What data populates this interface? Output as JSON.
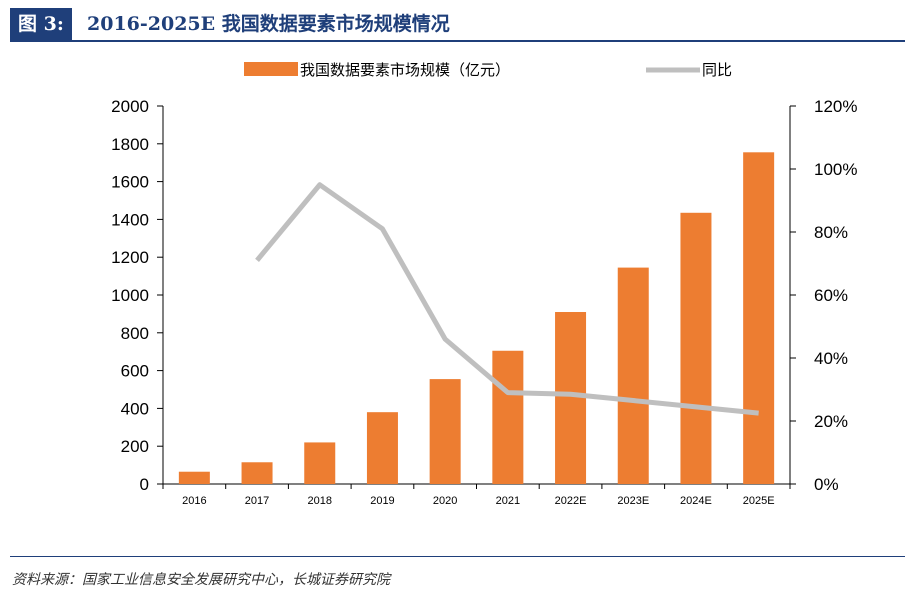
{
  "header": {
    "figure_label": "图 3:",
    "title": "2016-2025E 我国数据要素市场规模情况"
  },
  "footer": {
    "source": "资料来源：国家工业信息安全发展研究中心，长城证券研究院"
  },
  "colors": {
    "bar": "#ed7d31",
    "line": "#bfbfbf",
    "header": "#1f3f7a"
  },
  "chart_data": {
    "type": "bar",
    "categories": [
      "2016",
      "2017",
      "2018",
      "2019",
      "2020",
      "2021",
      "2022E",
      "2023E",
      "2024E",
      "2025E"
    ],
    "series": [
      {
        "name": "我国数据要素市场规模（亿元）",
        "type": "bar",
        "axis": "left",
        "values": [
          65,
          115,
          220,
          380,
          555,
          705,
          910,
          1145,
          1435,
          1755
        ]
      },
      {
        "name": "同比",
        "type": "line",
        "axis": "right",
        "values": [
          null,
          71,
          95,
          81,
          46,
          29,
          28.5,
          26.5,
          24.5,
          22.5
        ]
      }
    ],
    "y_left": {
      "min": 0,
      "max": 2000,
      "step": 200,
      "ticks": [
        "0",
        "200",
        "400",
        "600",
        "800",
        "1000",
        "1200",
        "1400",
        "1600",
        "1800",
        "2000"
      ]
    },
    "y_right": {
      "min": 0,
      "max": 120,
      "step": 20,
      "ticks": [
        "0%",
        "20%",
        "40%",
        "60%",
        "80%",
        "100%",
        "120%"
      ]
    },
    "legend_position": "top",
    "grid": false
  }
}
